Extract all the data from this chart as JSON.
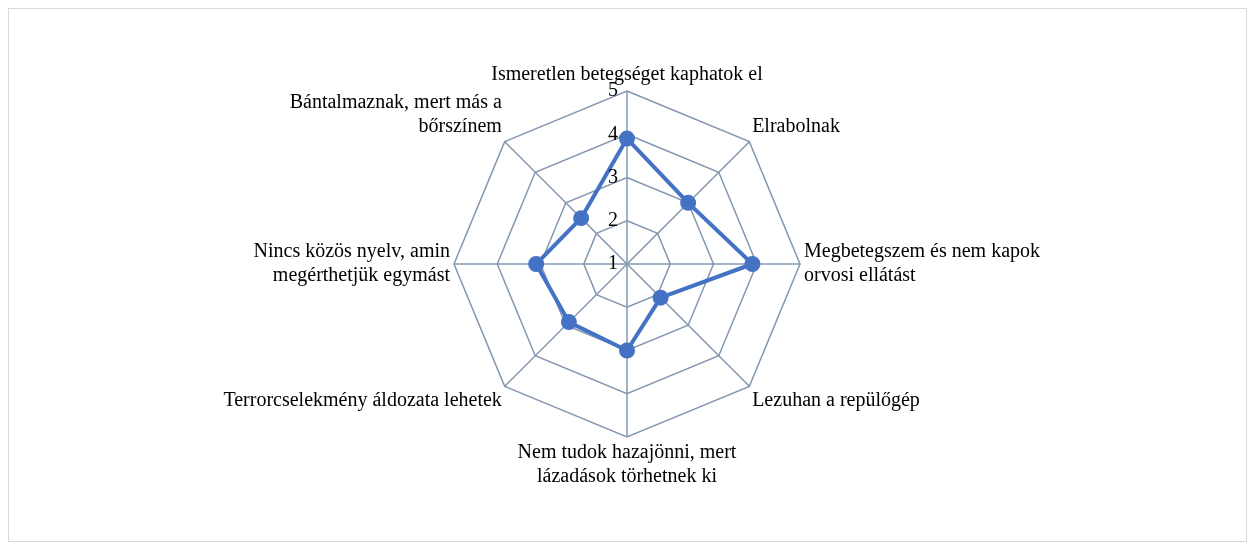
{
  "chart_data": {
    "type": "radar",
    "categories": [
      "Ismeretlen betegséget kaphatok el",
      "Elrabolnak",
      "Megbetegszem és nem kapok orvosi ellátást",
      "Lezuhan a repülőgép",
      "Nem tudok hazajönni, mert lázadások törhetnek ki",
      "Terrorcselekmény áldozata lehetek",
      "Nincs közös nyelv, amin megérthetjük egymást",
      "Bántalmaznak, mert más a bőrszínem"
    ],
    "series": [
      {
        "color": "#4472c4",
        "values": [
          3.9,
          3,
          3.9,
          2.1,
          3,
          2.9,
          3.1,
          2.5
        ]
      }
    ],
    "ylim": [
      1,
      5
    ],
    "yticks": [
      1,
      2,
      3,
      4,
      5
    ],
    "grid": true,
    "marker": "circle",
    "legend": false
  }
}
